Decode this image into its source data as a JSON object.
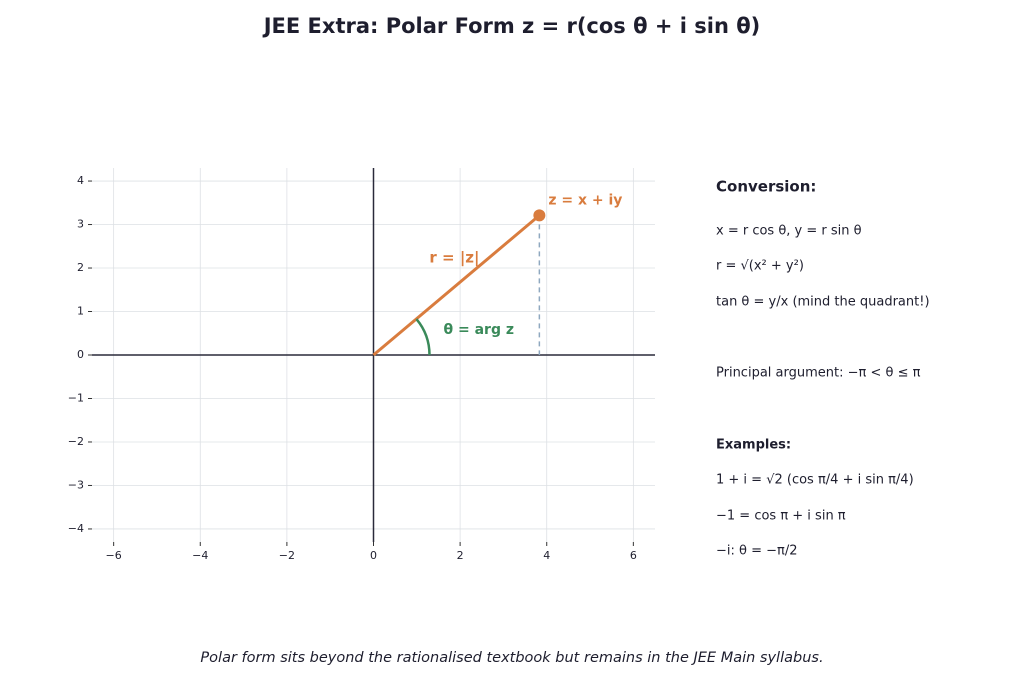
{
  "chart_data": {
    "type": "vector",
    "title": "JEE Extra:  Polar Form  z = r(cos θ + i sin θ)",
    "point": {
      "x": 3.83,
      "y": 3.21
    },
    "vector_color": "#d97c3e",
    "angle_color": "#3a8a5a",
    "xlim": [
      -6.5,
      6.5
    ],
    "ylim": [
      -4.3,
      4.3
    ],
    "xticks": [
      {
        "value": -6,
        "label": "−6"
      },
      {
        "value": -4,
        "label": "−4"
      },
      {
        "value": -2,
        "label": "−2"
      },
      0,
      2,
      4,
      6
    ],
    "yticks": [
      {
        "value": -4,
        "label": "−4"
      },
      {
        "value": -3,
        "label": "−3"
      },
      {
        "value": -2,
        "label": "−2"
      },
      {
        "value": -1,
        "label": "−1"
      },
      0,
      1,
      2,
      3,
      4
    ],
    "grid": true,
    "annotations": {
      "point_label": "z = x + iy",
      "radius_label": "r = |z|",
      "angle_label": "θ = arg z"
    }
  },
  "panel": {
    "heading": "Conversion:",
    "lines": [
      "x = r cos θ,  y = r sin θ",
      "r = √(x² + y²)",
      "tan θ = y/x  (mind the quadrant!)"
    ],
    "principal": "Principal argument: −π < θ ≤ π",
    "examples_heading": "Examples:",
    "examples": [
      "1 + i = √2 (cos π/4 + i sin π/4)",
      "−1 = cos π + i sin π",
      "−i: θ = −π/2"
    ]
  },
  "footnote": "Polar form sits beyond the rationalised textbook but remains in the JEE Main syllabus."
}
